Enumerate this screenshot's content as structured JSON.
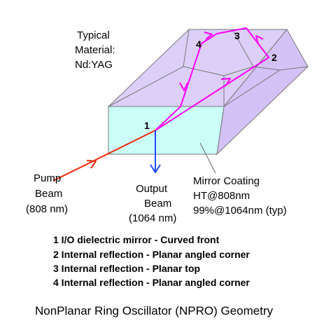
{
  "material": {
    "line1": "Typical",
    "line2": "Material:",
    "line3": "Nd:YAG"
  },
  "points": {
    "p1": "1",
    "p2": "2",
    "p3": "3",
    "p4": "4"
  },
  "pump": {
    "line1": "Pump",
    "line2": "Beam",
    "line3": "(808 nm)"
  },
  "output": {
    "line1": "Output",
    "line2": "Beam",
    "line3": "(1064 nm)"
  },
  "coating": {
    "line1": "Mirror Coating",
    "line2": "HT@808nm",
    "line3": "99%@1064nm (typ)"
  },
  "legend": [
    "1 I/O dielectric mirror - Curved front",
    "2 Internal reflection - Planar angled corner",
    "3 Internal reflection - Planar top",
    "4 Internal reflection - Planar angled corner"
  ],
  "caption": "NonPlanar Ring Oscillator (NPRO) Geometry",
  "colors": {
    "front_face": "#ccfff9",
    "top_face": "#dcd0f8",
    "side_face": "#d4c2f6",
    "edge": "#777777",
    "ring_beam": "#ff00ff",
    "pump_beam": "#ee2a0c",
    "output_beam": "#1a4cff"
  }
}
